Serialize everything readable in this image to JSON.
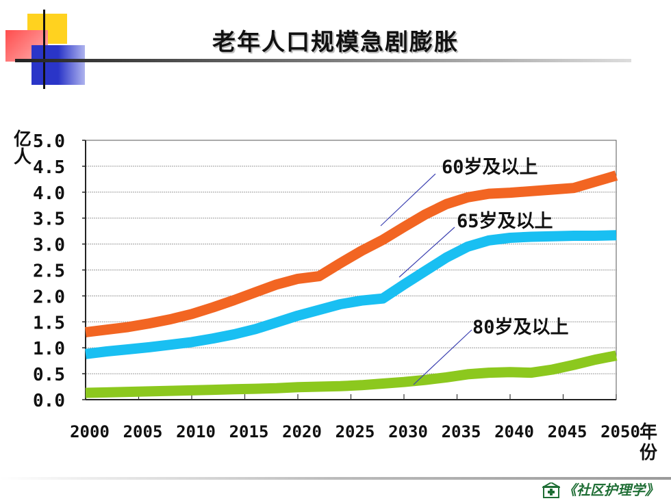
{
  "slide": {
    "title": "老年人口规模急剧膨胀",
    "footer": "《社区护理学》"
  },
  "colors": {
    "accent_yellow": "#ffd21f",
    "accent_red": "#ff5a5a",
    "accent_blue": "#2a35c8",
    "series_60": "#f26522",
    "series_65": "#19bff2",
    "series_80": "#8cc81e"
  },
  "chart_data": {
    "type": "line",
    "title": "",
    "ylabel": "亿人",
    "xlabel": "年份",
    "ylim": [
      0,
      5.0
    ],
    "yticks": [
      "0.0",
      "0.5",
      "1.0",
      "1.5",
      "2.0",
      "2.5",
      "3.0",
      "3.5",
      "4.0",
      "4.5",
      "5.0"
    ],
    "xticks": [
      "2000",
      "2005",
      "2010",
      "2015",
      "2020",
      "2025",
      "2030",
      "2035",
      "2040",
      "2045",
      "2050"
    ],
    "grid": true,
    "x": [
      2000,
      2002,
      2004,
      2006,
      2008,
      2010,
      2012,
      2014,
      2016,
      2018,
      2020,
      2022,
      2024,
      2026,
      2028,
      2030,
      2032,
      2034,
      2036,
      2038,
      2040,
      2042,
      2044,
      2046,
      2048,
      2050
    ],
    "series": [
      {
        "name": "60岁及以上",
        "color": "#f26522",
        "values": [
          1.3,
          1.35,
          1.4,
          1.47,
          1.55,
          1.65,
          1.78,
          1.92,
          2.07,
          2.22,
          2.33,
          2.38,
          2.63,
          2.87,
          3.08,
          3.33,
          3.57,
          3.77,
          3.9,
          3.97,
          3.99,
          4.02,
          4.05,
          4.08,
          4.2,
          4.32
        ]
      },
      {
        "name": "65岁及以上",
        "color": "#19bff2",
        "values": [
          0.88,
          0.93,
          0.97,
          1.01,
          1.06,
          1.11,
          1.18,
          1.26,
          1.36,
          1.49,
          1.62,
          1.73,
          1.84,
          1.91,
          1.95,
          2.22,
          2.48,
          2.74,
          2.95,
          3.07,
          3.12,
          3.14,
          3.15,
          3.16,
          3.16,
          3.17
        ]
      },
      {
        "name": "80岁及以上",
        "color": "#8cc81e",
        "values": [
          0.13,
          0.14,
          0.15,
          0.16,
          0.17,
          0.18,
          0.19,
          0.2,
          0.21,
          0.22,
          0.24,
          0.25,
          0.26,
          0.28,
          0.31,
          0.34,
          0.38,
          0.43,
          0.49,
          0.52,
          0.53,
          0.52,
          0.58,
          0.67,
          0.77,
          0.85
        ]
      }
    ],
    "annotations": [
      "60岁及以上",
      "65岁及以上",
      "80岁及以上"
    ]
  }
}
